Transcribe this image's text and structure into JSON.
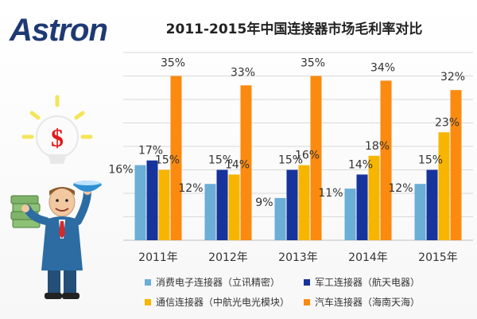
{
  "logo_text": "Astron",
  "colors": {
    "consumer": "#6baed6",
    "military": "#17349c",
    "telecom": "#f7b500",
    "auto": "#fb8a0e",
    "grid": "#d9d9d9",
    "text": "#333333"
  },
  "chart_data": {
    "type": "bar",
    "title": "2011-2015年中国连接器市场毛利率对比",
    "categories": [
      "2011年",
      "2012年",
      "2013年",
      "2014年",
      "2015年"
    ],
    "ylim": [
      0,
      40
    ],
    "grid": true,
    "legend_position": "bottom",
    "series": [
      {
        "name": "消费电子连接器（立讯精密）",
        "color_key": "consumer",
        "values": [
          16,
          12,
          9,
          11,
          12
        ],
        "labels": [
          "16%",
          "12%",
          "9%",
          "11%",
          "12%"
        ]
      },
      {
        "name": "军工连接器（航天电器）",
        "color_key": "military",
        "values": [
          17,
          15,
          15,
          14,
          15
        ],
        "labels": [
          "17%",
          "15%",
          "15%",
          "14%",
          "15%"
        ]
      },
      {
        "name": "通信连接器（中航光电光模块）",
        "color_key": "telecom",
        "values": [
          15,
          14,
          16,
          18,
          23
        ],
        "labels": [
          "15%",
          "14%",
          "16%",
          "18%",
          "23%"
        ]
      },
      {
        "name": "汽车连接器（海南天海）",
        "color_key": "auto",
        "values": [
          35,
          33,
          35,
          34,
          32
        ],
        "labels": [
          "35%",
          "33%",
          "35%",
          "34%",
          "32%"
        ]
      }
    ]
  }
}
